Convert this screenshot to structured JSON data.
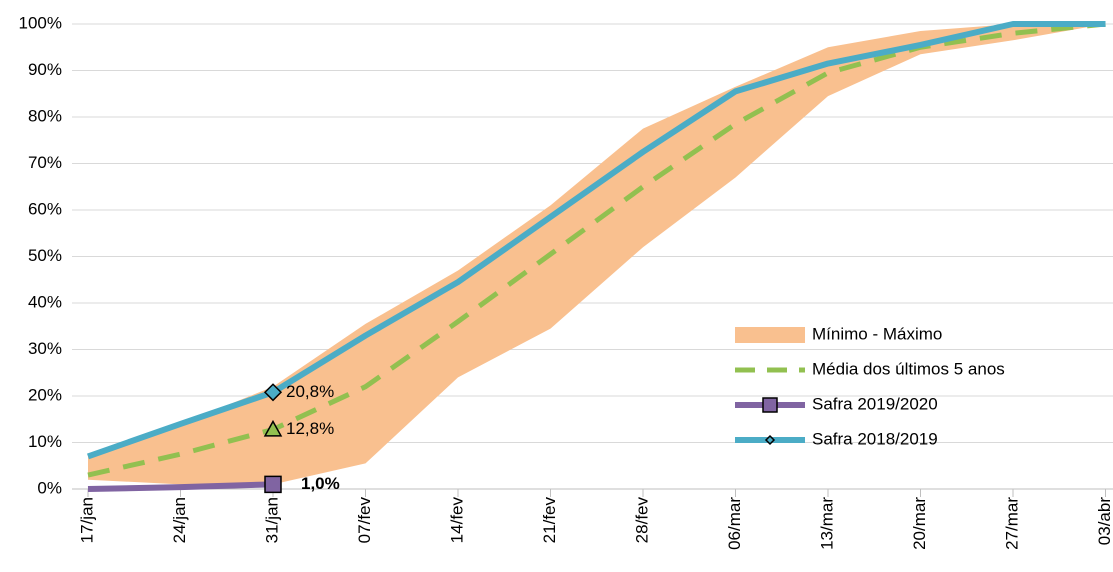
{
  "chart_data": {
    "type": "line",
    "categories": [
      "17/jan",
      "24/jan",
      "31/jan",
      "07/fev",
      "14/fev",
      "21/fev",
      "28/fev",
      "06/mar",
      "13/mar",
      "20/mar",
      "27/mar",
      "03/abr"
    ],
    "ylim": [
      0,
      100
    ],
    "yticks": [
      {
        "value": 0,
        "label": "0%"
      },
      {
        "value": 10,
        "label": "10%"
      },
      {
        "value": 20,
        "label": "20%"
      },
      {
        "value": 30,
        "label": "30%"
      },
      {
        "value": 40,
        "label": "40%"
      },
      {
        "value": 50,
        "label": "50%"
      },
      {
        "value": 60,
        "label": "60%"
      },
      {
        "value": 70,
        "label": "70%"
      },
      {
        "value": 80,
        "label": "80%"
      },
      {
        "value": 90,
        "label": "90%"
      },
      {
        "value": 100,
        "label": "100%"
      }
    ],
    "grid": true,
    "legend": "lower-right",
    "band": {
      "name": "Mínimo - Máximo",
      "color": "#f9c08f",
      "min": [
        2,
        1,
        1,
        5.5,
        24,
        34.5,
        52,
        67,
        84.5,
        93.5,
        96.5,
        100
      ],
      "max": [
        7,
        14,
        22,
        35.5,
        47,
        61,
        77.5,
        86.5,
        95,
        98.5,
        100,
        100
      ]
    },
    "series": [
      {
        "name": "Média dos últimos 5 anos",
        "color": "#92c050",
        "dash": true,
        "marker": "triangle",
        "values": [
          3,
          7.5,
          12.8,
          22,
          36,
          50.5,
          65,
          78.5,
          89.5,
          95,
          98,
          100
        ],
        "value_labels": [
          null,
          null,
          "12,8%",
          null,
          null,
          null,
          null,
          null,
          null,
          null,
          null,
          null
        ]
      },
      {
        "name": "Safra 2019/2020",
        "color": "#8064a2",
        "dash": false,
        "marker": "square",
        "bold_label": true,
        "values": [
          0,
          0.4,
          1.0,
          null,
          null,
          null,
          null,
          null,
          null,
          null,
          null,
          null
        ],
        "value_labels": [
          null,
          null,
          "1,0%",
          null,
          null,
          null,
          null,
          null,
          null,
          null,
          null,
          null
        ]
      },
      {
        "name": "Safra 2018/2019",
        "color": "#4bacc6",
        "dash": false,
        "marker": "diamond",
        "values": [
          7,
          14,
          20.8,
          33,
          44.5,
          58.5,
          72.5,
          85.5,
          91.5,
          95.5,
          100,
          100
        ],
        "value_labels": [
          null,
          null,
          "20,8%",
          null,
          null,
          null,
          null,
          null,
          null,
          null,
          null,
          null
        ]
      }
    ]
  }
}
